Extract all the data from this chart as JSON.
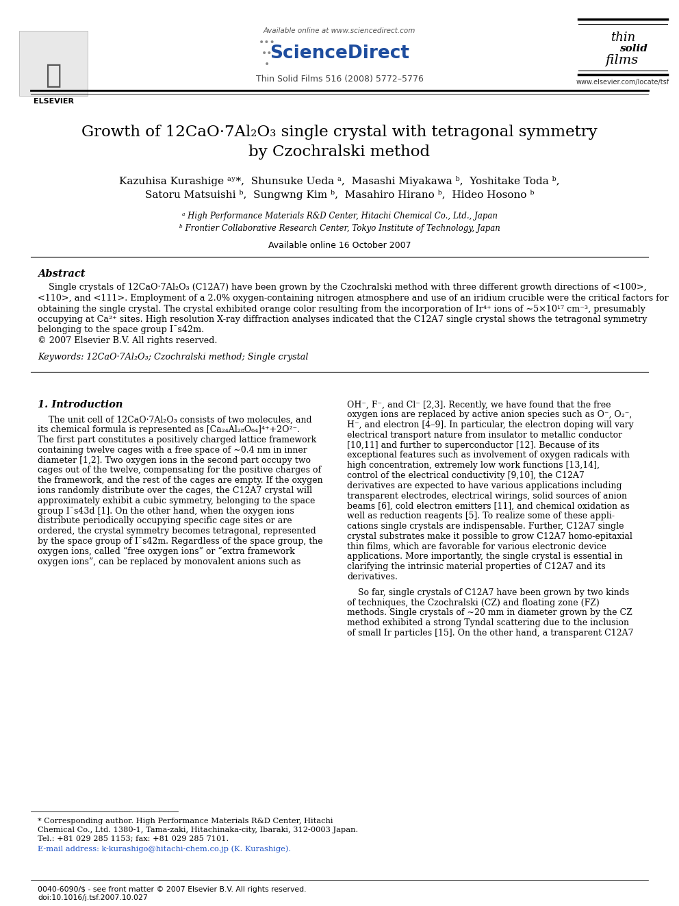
{
  "bg_color": "#ffffff",
  "title_line1": "Growth of 12CaO·7Al₂O₃ single crystal with tetragonal symmetry",
  "title_line2": "by Czochralski method",
  "authors_line1": "Kazuhisa Kurashige ᵃʸ*,  Shunsuke Ueda ᵃ,  Masashi Miyakawa ᵇ,  Yoshitake Toda ᵇ,",
  "authors_line2": "Satoru Matsuishi ᵇ,  Sungwng Kim ᵇ,  Masahiro Hirano ᵇ,  Hideo Hosono ᵇ",
  "affil_a": "ᵃ High Performance Materials R&D Center, Hitachi Chemical Co., Ltd., Japan",
  "affil_b": "ᵇ Frontier Collaborative Research Center, Tokyo Institute of Technology, Japan",
  "available_online": "Available online 16 October 2007",
  "journal_line": "Thin Solid Films 516 (2008) 5772–5776",
  "available_online_top": "Available online at www.sciencedirect.com",
  "abstract_title": "Abstract",
  "abstract_lines": [
    "    Single crystals of 12CaO·7Al₂O₃ (C12A7) have been grown by the Czochralski method with three different growth directions of <100>,",
    "<110>, and <111>. Employment of a 2.0% oxygen-containing nitrogen atmosphere and use of an iridium crucible were the critical factors for",
    "obtaining the single crystal. The crystal exhibited orange color resulting from the incorporation of Ir⁴⁺ ions of ∼5×10¹⁷ cm⁻³, presumably",
    "occupying at Ca²⁺ sites. High resolution X-ray diffraction analyses indicated that the C12A7 single crystal shows the tetragonal symmetry",
    "belonging to the space group I¯s42m.",
    "© 2007 Elsevier B.V. All rights reserved."
  ],
  "keywords_line": "Keywords: 12CaO·7Al₂O₃; Czochralski method; Single crystal",
  "section1_title": "1. Introduction",
  "col1_lines": [
    "    The unit cell of 12CaO·7Al₂O₃ consists of two molecules, and",
    "its chemical formula is represented as [Ca₂₄Al₂₈O₆₄]⁴⁺+2O²⁻.",
    "The first part constitutes a positively charged lattice framework",
    "containing twelve cages with a free space of ∼0.4 nm in inner",
    "diameter [1,2]. Two oxygen ions in the second part occupy two",
    "cages out of the twelve, compensating for the positive charges of",
    "the framework, and the rest of the cages are empty. If the oxygen",
    "ions randomly distribute over the cages, the C12A7 crystal will",
    "approximately exhibit a cubic symmetry, belonging to the space",
    "group I¯s43d [1]. On the other hand, when the oxygen ions",
    "distribute periodically occupying specific cage sites or are",
    "ordered, the crystal symmetry becomes tetragonal, represented",
    "by the space group of I¯s42m. Regardless of the space group, the",
    "oxygen ions, called “free oxygen ions” or “extra framework",
    "oxygen ions”, can be replaced by monovalent anions such as"
  ],
  "col2_lines_p1": [
    "OH⁻, F⁻, and Cl⁻ [2,3]. Recently, we have found that the free",
    "oxygen ions are replaced by active anion species such as O⁻, O₂⁻,",
    "H⁻, and electron [4–9]. In particular, the electron doping will vary",
    "electrical transport nature from insulator to metallic conductor",
    "[10,11] and further to superconductor [12]. Because of its",
    "exceptional features such as involvement of oxygen radicals with",
    "high concentration, extremely low work functions [13,14],",
    "control of the electrical conductivity [9,10], the C12A7",
    "derivatives are expected to have various applications including",
    "transparent electrodes, electrical wirings, solid sources of anion",
    "beams [6], cold electron emitters [11], and chemical oxidation as",
    "well as reduction reagents [5]. To realize some of these appli-",
    "cations single crystals are indispensable. Further, C12A7 single",
    "crystal substrates make it possible to grow C12A7 homo-epitaxial",
    "thin films, which are favorable for various electronic device",
    "applications. More importantly, the single crystal is essential in",
    "clarifying the intrinsic material properties of C12A7 and its",
    "derivatives."
  ],
  "col2_lines_p2": [
    "    So far, single crystals of C12A7 have been grown by two kinds",
    "of techniques, the Czochralski (CZ) and floating zone (FZ)",
    "methods. Single crystals of ∼20 mm in diameter grown by the CZ",
    "method exhibited a strong Tyndal scattering due to the inclusion",
    "of small Ir particles [15]. On the other hand, a transparent C12A7"
  ],
  "footnote_lines": [
    "* Corresponding author. High Performance Materials R&D Center, Hitachi",
    "Chemical Co., Ltd. 1380-1, Tama-zaki, Hitachinaka-city, Ibaraki, 312-0003 Japan.",
    "Tel.: +81 029 285 1153; fax: +81 029 285 7101."
  ],
  "footnote_email": "E-mail address: k-kurashigo@hitachi-chem.co.jp (K. Kurashige).",
  "footer_left": "0040-6090/$ - see front matter © 2007 Elsevier B.V. All rights reserved.",
  "footer_doi": "doi:10.1016/j.tsf.2007.10.027"
}
